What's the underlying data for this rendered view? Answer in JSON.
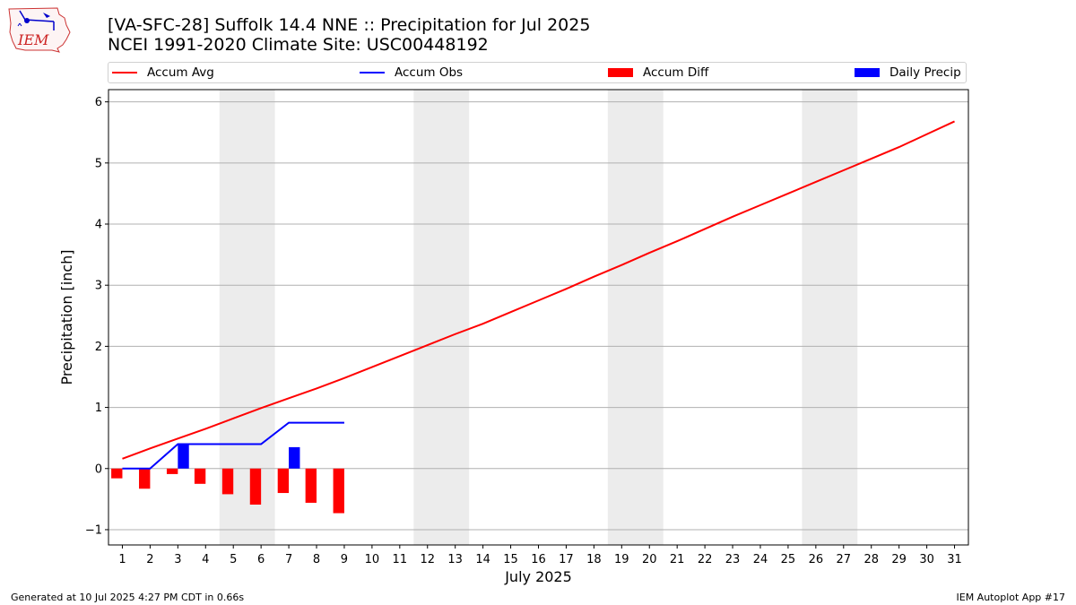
{
  "header": {
    "logo_text": "IEM",
    "title_line1": "[VA-SFC-28] Suffolk 14.4 NNE :: Precipitation for Jul 2025",
    "title_line2": "NCEI 1991-2020 Climate Site: USC00448192"
  },
  "legend": {
    "placement": "top",
    "items": [
      {
        "label": "Accum Avg",
        "kind": "line",
        "color": "#ff0000"
      },
      {
        "label": "Accum Obs",
        "kind": "line",
        "color": "#0000ff"
      },
      {
        "label": "Accum Diff",
        "kind": "bar",
        "color": "#ff0000"
      },
      {
        "label": "Daily Precip",
        "kind": "bar",
        "color": "#0000ff"
      }
    ]
  },
  "footer": {
    "left": "Generated at 10 Jul 2025 4:27 PM CDT in 0.66s",
    "right": "IEM Autoplot App #17"
  },
  "chart_data": {
    "type": "line",
    "xlabel": "July 2025",
    "ylabel": "Precipitation [inch]",
    "xlim": [
      0.5,
      31.5
    ],
    "ylim": [
      -1.25,
      6.2
    ],
    "xticks": [
      1,
      2,
      3,
      4,
      5,
      6,
      7,
      8,
      9,
      10,
      11,
      12,
      13,
      14,
      15,
      16,
      17,
      18,
      19,
      20,
      21,
      22,
      23,
      24,
      25,
      26,
      27,
      28,
      29,
      30,
      31
    ],
    "yticks": [
      -1,
      0,
      1,
      2,
      3,
      4,
      5,
      6
    ],
    "grid": "y",
    "weekend_shading": [
      [
        4.5,
        6.5
      ],
      [
        11.5,
        13.5
      ],
      [
        18.5,
        20.5
      ],
      [
        25.5,
        27.5
      ]
    ],
    "shading_color": "#ececec",
    "days": [
      1,
      2,
      3,
      4,
      5,
      6,
      7,
      8,
      9,
      10,
      11,
      12,
      13,
      14,
      15,
      16,
      17,
      18,
      19,
      20,
      21,
      22,
      23,
      24,
      25,
      26,
      27,
      28,
      29,
      30,
      31
    ],
    "series": [
      {
        "name": "Accum Avg",
        "kind": "line",
        "color": "#ff0000",
        "x": [
          1,
          2,
          3,
          4,
          5,
          6,
          7,
          8,
          9,
          10,
          11,
          12,
          13,
          14,
          15,
          16,
          17,
          18,
          19,
          20,
          21,
          22,
          23,
          24,
          25,
          26,
          27,
          28,
          29,
          30,
          31
        ],
        "values": [
          0.16,
          0.33,
          0.49,
          0.65,
          0.82,
          0.99,
          1.15,
          1.31,
          1.48,
          1.66,
          1.84,
          2.02,
          2.2,
          2.37,
          2.56,
          2.75,
          2.94,
          3.14,
          3.33,
          3.53,
          3.72,
          3.92,
          4.12,
          4.31,
          4.5,
          4.69,
          4.88,
          5.07,
          5.26,
          5.47,
          5.68
        ]
      },
      {
        "name": "Accum Obs",
        "kind": "line",
        "color": "#0000ff",
        "x": [
          1,
          2,
          3,
          4,
          5,
          6,
          7,
          8,
          9
        ],
        "values": [
          0.0,
          0.0,
          0.4,
          0.4,
          0.4,
          0.4,
          0.75,
          0.75,
          0.75
        ]
      },
      {
        "name": "Accum Diff",
        "kind": "bar",
        "color": "#ff0000",
        "x": [
          1,
          2,
          3,
          4,
          5,
          6,
          7,
          8,
          9
        ],
        "values": [
          -0.16,
          -0.33,
          -0.09,
          -0.25,
          -0.42,
          -0.59,
          -0.4,
          -0.56,
          -0.73
        ]
      },
      {
        "name": "Daily Precip",
        "kind": "bar",
        "color": "#0000ff",
        "x": [
          1,
          2,
          3,
          4,
          5,
          6,
          7,
          8,
          9
        ],
        "values": [
          0.0,
          0.0,
          0.4,
          0.0,
          0.0,
          0.0,
          0.35,
          0.0,
          0.0
        ]
      }
    ]
  }
}
